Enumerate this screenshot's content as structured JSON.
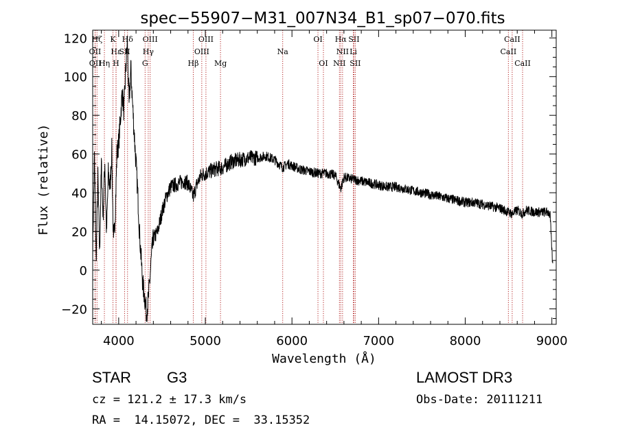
{
  "chart_data": {
    "type": "line",
    "title": "spec−55907−M31_007N34_B1_sp07−070.fits",
    "xlabel": "Wavelength (Å)",
    "ylabel": "Flux (relative)",
    "xlim": [
      3700,
      9050
    ],
    "ylim": [
      -28,
      124
    ],
    "xticks": [
      4000,
      5000,
      6000,
      7000,
      8000,
      9000
    ],
    "yticks": [
      -20,
      0,
      20,
      40,
      60,
      80,
      100,
      120
    ],
    "ytick_labels": [
      "−20",
      "0",
      "20",
      "40",
      "60",
      "80",
      "100",
      "120"
    ],
    "spectrum_knots": [
      [
        3700,
        10
      ],
      [
        3720,
        58
      ],
      [
        3740,
        5
      ],
      [
        3760,
        48
      ],
      [
        3780,
        8
      ],
      [
        3800,
        55
      ],
      [
        3820,
        28
      ],
      [
        3840,
        56
      ],
      [
        3860,
        18
      ],
      [
        3880,
        50
      ],
      [
        3900,
        42
      ],
      [
        3920,
        62
      ],
      [
        3940,
        12
      ],
      [
        3960,
        30
      ],
      [
        3980,
        60
      ],
      [
        4000,
        66
      ],
      [
        4020,
        78
      ],
      [
        4040,
        92
      ],
      [
        4060,
        82
      ],
      [
        4080,
        102
      ],
      [
        4100,
        118
      ],
      [
        4120,
        85
      ],
      [
        4140,
        105
      ],
      [
        4160,
        86
      ],
      [
        4180,
        70
      ],
      [
        4200,
        55
      ],
      [
        4220,
        40
      ],
      [
        4240,
        20
      ],
      [
        4260,
        5
      ],
      [
        4280,
        -8
      ],
      [
        4300,
        -14
      ],
      [
        4320,
        -22
      ],
      [
        4340,
        -16
      ],
      [
        4360,
        -5
      ],
      [
        4380,
        8
      ],
      [
        4400,
        16
      ],
      [
        4450,
        20
      ],
      [
        4500,
        30
      ],
      [
        4550,
        38
      ],
      [
        4600,
        43
      ],
      [
        4650,
        44
      ],
      [
        4700,
        45
      ],
      [
        4750,
        46
      ],
      [
        4800,
        45
      ],
      [
        4861,
        38
      ],
      [
        4900,
        44
      ],
      [
        4950,
        49
      ],
      [
        5000,
        50
      ],
      [
        5100,
        52
      ],
      [
        5200,
        53
      ],
      [
        5300,
        56
      ],
      [
        5400,
        57
      ],
      [
        5500,
        58
      ],
      [
        5600,
        58
      ],
      [
        5700,
        59
      ],
      [
        5800,
        57
      ],
      [
        5893,
        53
      ],
      [
        5950,
        55
      ],
      [
        6000,
        54
      ],
      [
        6100,
        52
      ],
      [
        6200,
        51
      ],
      [
        6300,
        50
      ],
      [
        6400,
        50
      ],
      [
        6500,
        49
      ],
      [
        6563,
        42
      ],
      [
        6600,
        48
      ],
      [
        6700,
        47
      ],
      [
        6800,
        46
      ],
      [
        6900,
        45
      ],
      [
        7000,
        44
      ],
      [
        7100,
        43
      ],
      [
        7200,
        43
      ],
      [
        7300,
        42
      ],
      [
        7400,
        41
      ],
      [
        7500,
        40
      ],
      [
        7600,
        39
      ],
      [
        7700,
        38
      ],
      [
        7800,
        37
      ],
      [
        7900,
        36
      ],
      [
        8000,
        35
      ],
      [
        8100,
        35
      ],
      [
        8200,
        34
      ],
      [
        8300,
        33
      ],
      [
        8400,
        32
      ],
      [
        8498,
        30
      ],
      [
        8542,
        29
      ],
      [
        8600,
        31
      ],
      [
        8662,
        29
      ],
      [
        8700,
        31
      ],
      [
        8800,
        30
      ],
      [
        8900,
        30
      ],
      [
        8960,
        30
      ],
      [
        8980,
        28
      ],
      [
        9000,
        10
      ],
      [
        9010,
        2
      ]
    ],
    "noise_amplitude": 2.5,
    "lines": [
      {
        "name": "Hζ",
        "wave": 3750,
        "row": 0
      },
      {
        "name": "OII",
        "wave": 3727,
        "row": 1
      },
      {
        "name": "OII",
        "wave": 3729,
        "row": 2
      },
      {
        "name": "K",
        "wave": 3934,
        "row": 0
      },
      {
        "name": "Hε",
        "wave": 3970,
        "row": 1
      },
      {
        "name": "Hη",
        "wave": 3835,
        "row": 2
      },
      {
        "name": "Hδ",
        "wave": 4102,
        "row": 0
      },
      {
        "name": "SII",
        "wave": 4068,
        "row": 1
      },
      {
        "name": "H",
        "wave": 3969,
        "row": 2
      },
      {
        "name": "OIII",
        "wave": 4363,
        "row": 0
      },
      {
        "name": "Hγ",
        "wave": 4341,
        "row": 1
      },
      {
        "name": "G",
        "wave": 4305,
        "row": 2
      },
      {
        "name": "OIII",
        "wave": 5007,
        "row": 0
      },
      {
        "name": "OIII",
        "wave": 4959,
        "row": 1
      },
      {
        "name": "Hβ",
        "wave": 4861,
        "row": 2
      },
      {
        "name": "Mg",
        "wave": 5175,
        "row": 2
      },
      {
        "name": "Na",
        "wave": 5893,
        "row": 1
      },
      {
        "name": "OI",
        "wave": 6300,
        "row": 0
      },
      {
        "name": "OI",
        "wave": 6363,
        "row": 2
      },
      {
        "name": "Hα",
        "wave": 6563,
        "row": 0
      },
      {
        "name": "SII",
        "wave": 6716,
        "row": 0
      },
      {
        "name": "NII",
        "wave": 6584,
        "row": 1
      },
      {
        "name": "Li",
        "wave": 6708,
        "row": 1
      },
      {
        "name": "NII",
        "wave": 6548,
        "row": 2
      },
      {
        "name": "SII",
        "wave": 6731,
        "row": 2
      },
      {
        "name": "CaII",
        "wave": 8542,
        "row": 0
      },
      {
        "name": "CaII",
        "wave": 8498,
        "row": 1
      },
      {
        "name": "CaII",
        "wave": 8662,
        "row": 2
      }
    ]
  },
  "info": {
    "class": "STAR",
    "subclass": "G3",
    "cz": "cz = 121.2 ± 17.3 km/s",
    "radec": "RA =  14.15072, DEC =  33.15352",
    "survey": "LAMOST DR3",
    "obsdate": "Obs-Date: 20111211"
  },
  "colors": {
    "line_markers": "#b22222",
    "spectrum": "#000000"
  }
}
